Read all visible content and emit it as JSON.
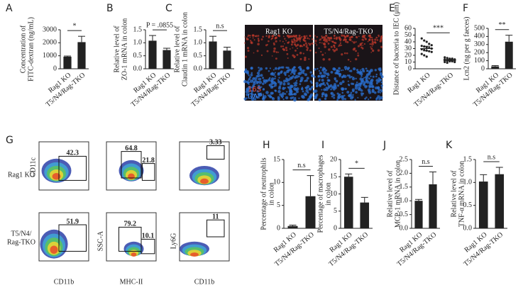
{
  "chart_data": [
    {
      "panel": "A",
      "type": "bar",
      "ylabel": [
        "Concentration of",
        "FITC-dextran (ng/mL)"
      ],
      "categories": [
        "Rag1 KO",
        "T5/N4/Rag-TKO"
      ],
      "values": [
        930,
        2050
      ],
      "errors": [
        50,
        450
      ],
      "ylim": [
        0,
        3000
      ],
      "yticks": [
        0,
        1000,
        2000,
        3000
      ],
      "annotation": "*",
      "color": "#222222"
    },
    {
      "panel": "B",
      "type": "bar",
      "ylabel": [
        "Relative level of",
        "ZO-1 mRNA in colon"
      ],
      "categories": [
        "Rag1 KO",
        "T5/N4/Rag-TKO"
      ],
      "values": [
        1.08,
        0.72
      ],
      "errors": [
        0.2,
        0.07
      ],
      "ylim": [
        0,
        1.5
      ],
      "yticks": [
        {
          "value": 0,
          "label": "0.0"
        },
        0.5,
        {
          "value": 1,
          "label": "1.0"
        },
        1.5
      ],
      "annotation": "P = .0855",
      "color": "#222222"
    },
    {
      "panel": "C",
      "type": "bar",
      "ylabel": [
        "Relative level of",
        "Claudin 1 mRNA in colon"
      ],
      "categories": [
        "Rag1 KO",
        "T5/N4/Rag-TKO"
      ],
      "values": [
        1.05,
        0.7
      ],
      "errors": [
        0.2,
        0.13
      ],
      "ylim": [
        0,
        1.5
      ],
      "yticks": [
        {
          "value": 0,
          "label": "0.0"
        },
        0.5,
        {
          "value": 1,
          "label": "1.0"
        },
        1.5
      ],
      "annotation": "n.s",
      "color": "#222222"
    },
    {
      "panel": "E",
      "type": "dot",
      "ylabel": [
        "Distance of bacteria to IEC (μm)"
      ],
      "categories": [
        "Rag1 KO",
        "T5/N4/Rag-TKO"
      ],
      "points": [
        [
          45,
          42,
          40,
          37,
          35,
          34,
          33,
          32,
          31,
          30,
          29,
          28,
          27,
          26,
          25,
          22,
          20,
          18
        ],
        [
          17,
          16,
          15,
          15,
          14,
          14,
          13,
          13,
          13,
          12,
          12,
          12,
          11,
          11,
          10,
          10,
          9
        ]
      ],
      "means": [
        30,
        13
      ],
      "errors": [
        3.5,
        1
      ],
      "ylim": [
        0,
        60
      ],
      "yticks": [
        0,
        10,
        20,
        30,
        40,
        50,
        60
      ],
      "annotation": "***",
      "color": "#222222"
    },
    {
      "panel": "F",
      "type": "bar",
      "ylabel": [
        "Lcn2 (ng per g faeces)"
      ],
      "categories": [
        "Rag1 KO",
        "T5/N4/Rag-TKO"
      ],
      "values": [
        30,
        335
      ],
      "errors": [
        10,
        80
      ],
      "ylim": [
        0,
        500
      ],
      "yticks": [
        0,
        100,
        200,
        300,
        400,
        500
      ],
      "annotation": "**",
      "color": "#222222"
    },
    {
      "panel": "H",
      "type": "bar",
      "ylabel": [
        "Percentage of neutrophils",
        "in colon"
      ],
      "categories": [
        "Rag1 KO",
        "T5/N4/Rag-TKO"
      ],
      "values": [
        0.5,
        7
      ],
      "errors": [
        0.2,
        4.5
      ],
      "ylim": [
        0,
        15
      ],
      "yticks": [
        0,
        5,
        10,
        15
      ],
      "annotation": "n.s",
      "color": "#222222"
    },
    {
      "panel": "I",
      "type": "bar",
      "ylabel": [
        "Percentage of macrophages",
        "in colon"
      ],
      "categories": [
        "Rag1 KO",
        "T5/N4/Rag-TKO"
      ],
      "values": [
        15,
        7.5
      ],
      "errors": [
        0.8,
        1.5
      ],
      "ylim": [
        0,
        20
      ],
      "yticks": [
        0,
        5,
        10,
        15,
        20
      ],
      "annotation": "*",
      "color": "#222222"
    },
    {
      "panel": "J",
      "type": "bar",
      "ylabel": [
        "Relative level of",
        "MCP-1 mRNA in colon"
      ],
      "categories": [
        "Rag1 KO",
        "T5/N4/Rag-TKO"
      ],
      "values": [
        1.0,
        1.6
      ],
      "errors": [
        0.05,
        0.45
      ],
      "ylim": [
        0,
        2.5
      ],
      "yticks": [
        {
          "value": 0,
          "label": "0.0"
        },
        0.5,
        {
          "value": 1,
          "label": "1.0"
        },
        1.5,
        {
          "value": 2,
          "label": "2.0"
        },
        2.5
      ],
      "annotation": "n.s",
      "color": "#222222"
    },
    {
      "panel": "K",
      "type": "bar",
      "ylabel": [
        "Relative level of",
        "TNF-α mRNA in colon"
      ],
      "categories": [
        "Rag1 KO",
        "T5/N4/Rag-TKO"
      ],
      "values": [
        1.02,
        1.18
      ],
      "errors": [
        0.15,
        0.15
      ],
      "ylim": [
        0,
        1.5
      ],
      "yticks": [
        {
          "value": 0,
          "label": "0.0"
        },
        0.5,
        {
          "value": 1,
          "label": "1.0"
        },
        1.5
      ],
      "annotation": "n.s",
      "color": "#222222"
    }
  ],
  "image_panels": {
    "D": {
      "panel": "D",
      "labels": [
        "Rag1 KO",
        "T5/N4/Rag-TKO"
      ],
      "stains": [
        "16S",
        "DAPI"
      ]
    },
    "G": {
      "panel": "G",
      "row_labels": [
        [
          "Rag1 KO"
        ],
        [
          "T5/N4/",
          "Rag-TKO"
        ]
      ],
      "y_labels": [
        "CD11c",
        "SSC-A",
        "Ly6G"
      ],
      "x_labels": [
        "CD11b",
        "MHC-II",
        "CD11b"
      ],
      "gates": [
        [
          42.3
        ],
        [
          64.8,
          21.8
        ],
        [
          3.33
        ],
        [
          51.9
        ],
        [
          79.2,
          10.1
        ],
        [
          11
        ]
      ]
    }
  }
}
